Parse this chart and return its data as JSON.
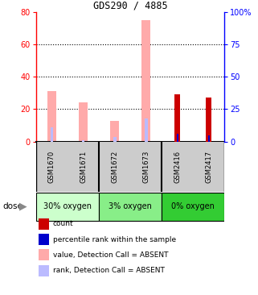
{
  "title": "GDS290 / 4885",
  "samples": [
    "GSM1670",
    "GSM1671",
    "GSM1672",
    "GSM1673",
    "GSM2416",
    "GSM2417"
  ],
  "groups": [
    {
      "label": "30% oxygen",
      "color": "#ccffcc"
    },
    {
      "label": "3% oxygen",
      "color": "#88ee88"
    },
    {
      "label": "0% oxygen",
      "color": "#33cc33"
    }
  ],
  "group_ranges": [
    [
      0,
      2
    ],
    [
      2,
      4
    ],
    [
      4,
      6
    ]
  ],
  "value_absent": [
    31,
    24,
    13,
    75,
    0,
    0
  ],
  "rank_absent": [
    9,
    1,
    3,
    14,
    0,
    0
  ],
  "count": [
    0,
    0,
    0,
    0,
    29,
    27
  ],
  "percentile": [
    0,
    0,
    0,
    0,
    5,
    4
  ],
  "ylim_left": [
    0,
    80
  ],
  "ylim_right": [
    0,
    100
  ],
  "yticks_left": [
    0,
    20,
    40,
    60,
    80
  ],
  "yticks_right": [
    0,
    25,
    50,
    75,
    100
  ],
  "ytick_labels_right": [
    "0",
    "25",
    "50",
    "75",
    "100%"
  ],
  "color_count": "#cc0000",
  "color_percentile": "#0000cc",
  "color_value_absent": "#ffaaaa",
  "color_rank_absent": "#bbbbff",
  "legend_items": [
    {
      "color": "#cc0000",
      "label": "count"
    },
    {
      "color": "#0000cc",
      "label": "percentile rank within the sample"
    },
    {
      "color": "#ffaaaa",
      "label": "value, Detection Call = ABSENT"
    },
    {
      "color": "#bbbbff",
      "label": "rank, Detection Call = ABSENT"
    }
  ]
}
